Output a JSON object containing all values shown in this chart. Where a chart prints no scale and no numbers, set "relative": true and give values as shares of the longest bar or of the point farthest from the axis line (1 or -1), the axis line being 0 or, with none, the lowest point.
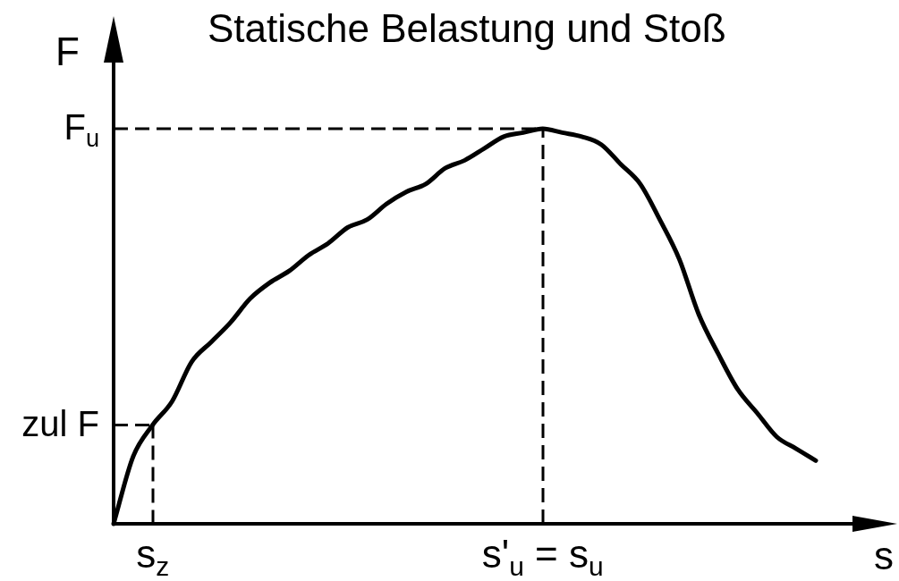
{
  "chart_data": {
    "type": "line",
    "title": "Statische Belastung und Stoß",
    "xlabel": "s",
    "ylabel": "F",
    "relative": true,
    "color": "#000000",
    "categories": [
      null,
      null,
      "s$_{z}$",
      null,
      null,
      null,
      null,
      null,
      null,
      null,
      null,
      null,
      null,
      null,
      null,
      null,
      null,
      null,
      null,
      null,
      null,
      null,
      "s'$_{u}$ = s$_{u}$",
      null,
      null,
      null,
      null,
      null,
      null,
      null,
      null,
      null,
      null,
      null,
      null,
      null,
      null
    ],
    "values": [
      0,
      0.17,
      0.25,
      0.31,
      0.41,
      0.46,
      0.51,
      0.57,
      0.61,
      0.64,
      0.68,
      0.71,
      0.75,
      0.77,
      0.81,
      0.84,
      0.86,
      0.9,
      0.92,
      0.95,
      0.98,
      0.99,
      1,
      0.99,
      0.98,
      0.96,
      0.91,
      0.86,
      0.77,
      0.67,
      0.53,
      0.43,
      0.34,
      0.28,
      0.22,
      0.19,
      0.16
    ],
    "annotations": [
      {
        "text": "F$_{u}$",
        "x": "s'$_{u}$ = s$_{u}$",
        "y": 1
      },
      {
        "text": "zul F",
        "x": "s$_{z}$",
        "y": 0.25
      }
    ]
  }
}
